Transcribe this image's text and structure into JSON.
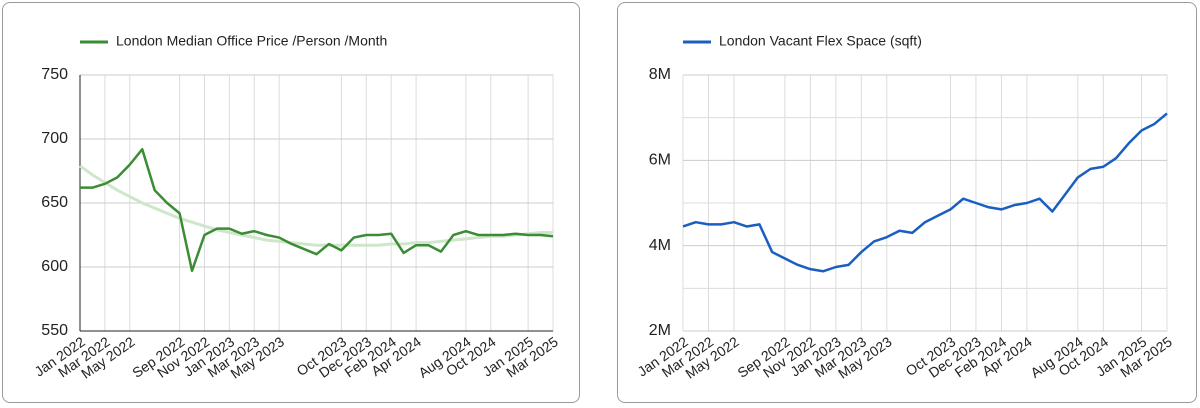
{
  "chart_data": [
    {
      "type": "line",
      "categories": [
        "Jan 2022",
        null,
        "Mar 2022",
        null,
        "May 2022",
        null,
        null,
        null,
        "Sep 2022",
        null,
        "Nov 2022",
        null,
        "Jan 2023",
        null,
        "Mar 2023",
        null,
        "May 2023",
        null,
        null,
        null,
        null,
        "Oct 2023",
        null,
        "Dec 2023",
        null,
        "Feb 2024",
        null,
        "Apr 2024",
        null,
        null,
        null,
        "Aug 2024",
        null,
        "Oct 2024",
        null,
        null,
        "Jan 2025",
        null,
        "Mar 2025"
      ],
      "series": [
        {
          "name": "London Median Office Price /Person /Month",
          "color": "#3a8d34",
          "values": [
            662,
            662,
            665,
            670,
            680,
            692,
            660,
            650,
            642,
            597,
            625,
            630,
            630,
            626,
            628,
            625,
            623,
            618,
            614,
            610,
            618,
            613,
            623,
            625,
            625,
            626,
            611,
            617,
            617,
            612,
            625,
            628,
            625,
            625,
            625,
            626,
            625,
            625,
            624
          ]
        }
      ],
      "trend": {
        "color": "#cfe6cb",
        "values": [
          679,
          672,
          666,
          660,
          655,
          650,
          646,
          642,
          638,
          635,
          632,
          629,
          627,
          625,
          623,
          621,
          620,
          619,
          618,
          617,
          617,
          617,
          617,
          617,
          617,
          618,
          618,
          619,
          619,
          620,
          621,
          622,
          623,
          624,
          624,
          625,
          626,
          627,
          627
        ]
      },
      "ylim": [
        550,
        750
      ],
      "yticks": [
        550,
        600,
        650,
        700,
        750
      ],
      "grid": true,
      "axis_lines": true
    },
    {
      "type": "line",
      "categories": [
        "Jan 2022",
        null,
        "Mar 2022",
        null,
        "May 2022",
        null,
        null,
        null,
        "Sep 2022",
        null,
        "Nov 2022",
        null,
        "Jan 2023",
        null,
        "Mar 2023",
        null,
        "May 2023",
        null,
        null,
        null,
        null,
        "Oct 2023",
        null,
        "Dec 2023",
        null,
        "Feb 2024",
        null,
        "Apr 2024",
        null,
        null,
        null,
        "Aug 2024",
        null,
        "Oct 2024",
        null,
        null,
        "Jan 2025",
        null,
        "Mar 2025"
      ],
      "series": [
        {
          "name": "London Vacant Flex Space (sqft)",
          "color": "#1a5fc0",
          "values": [
            4450000,
            4550000,
            4500000,
            4500000,
            4550000,
            4450000,
            4500000,
            3850000,
            3700000,
            3550000,
            3450000,
            3400000,
            3500000,
            3550000,
            3850000,
            4100000,
            4200000,
            4350000,
            4300000,
            4550000,
            4700000,
            4850000,
            5100000,
            5000000,
            4900000,
            4850000,
            4950000,
            5000000,
            5100000,
            4800000,
            5200000,
            5600000,
            5800000,
            5850000,
            6050000,
            6400000,
            6700000,
            6850000,
            7100000
          ]
        }
      ],
      "ylim": [
        2000000,
        8000000
      ],
      "yticks": [
        {
          "value": 2000000,
          "label": "2M"
        },
        {
          "value": 4000000,
          "label": "4M"
        },
        {
          "value": 6000000,
          "label": "6M"
        },
        {
          "value": 8000000,
          "label": "8M"
        }
      ],
      "minor_yticks": [
        3000000,
        5000000,
        7000000
      ],
      "grid": true,
      "axis_lines": false
    }
  ]
}
